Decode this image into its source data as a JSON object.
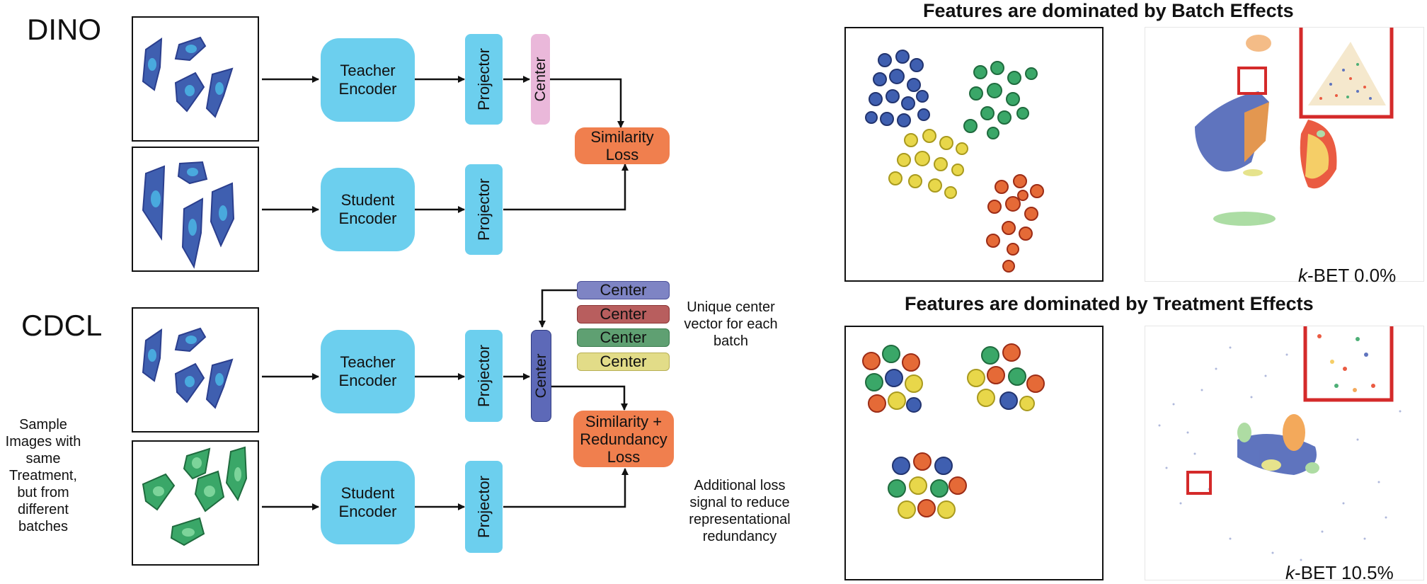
{
  "dino": {
    "title": "DINO",
    "teacher_encoder": "Teacher Encoder",
    "student_encoder": "Student Encoder",
    "projector": "Projector",
    "center": "Center",
    "loss": "Similarity Loss"
  },
  "cdcl": {
    "title": "CDCL",
    "side_note": "Sample Images with same Treatment, but from different batches",
    "teacher_encoder": "Teacher Encoder",
    "student_encoder": "Student Encoder",
    "projector": "Projector",
    "center": "Center",
    "batch_centers": [
      {
        "label": "Center",
        "color": "#7e84c4"
      },
      {
        "label": "Center",
        "color": "#b85e5e"
      },
      {
        "label": "Center",
        "color": "#5fa072"
      },
      {
        "label": "Center",
        "color": "#e2dc88"
      }
    ],
    "center_note": "Unique center vector for each batch",
    "loss": "Similarity + Redundancy Loss",
    "loss_note": "Additional loss signal to reduce representational redundancy"
  },
  "batch_panel": {
    "title": "Features are dominated by Batch Effects",
    "kbet_k": "k",
    "kbet_rest": "-BET 0.0%"
  },
  "treatment_panel": {
    "title": "Features are dominated by Treatment Effects",
    "kbet_k": "k",
    "kbet_rest": "-BET 10.5%"
  },
  "colors": {
    "encoder": "#6ccfee",
    "loss": "#f07f4e",
    "dino_center": "#eab8da",
    "cdcl_center": "#5d69b8",
    "cell_blue": "#3f5fb0",
    "cell_green": "#3aa768",
    "cell_yellow": "#e8d74a",
    "cell_orange": "#e56a37",
    "highlight": "#d42a2a"
  }
}
